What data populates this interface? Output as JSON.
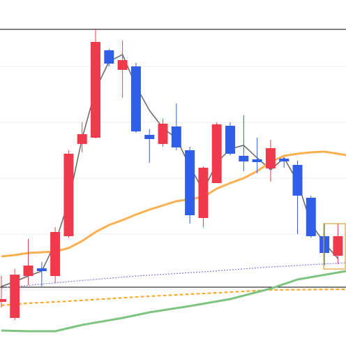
{
  "chart_data": {
    "type": "candlestick",
    "x": [
      0,
      1,
      2,
      3,
      4,
      5,
      6,
      7,
      8,
      9,
      10,
      11,
      12,
      13,
      14,
      15,
      16,
      17,
      18,
      19,
      20,
      21,
      22,
      23,
      24,
      25
    ],
    "open": [
      56,
      33,
      93,
      104,
      93,
      150,
      282,
      291,
      416,
      388,
      393,
      295,
      282,
      307,
      273,
      176,
      226,
      308,
      265,
      260,
      247,
      261,
      252,
      205,
      150,
      122
    ],
    "high": [
      93,
      103,
      146,
      113,
      163,
      273,
      313,
      446,
      418,
      430,
      398,
      303,
      318,
      340,
      278,
      250,
      313,
      313,
      323,
      291,
      288,
      263,
      258,
      208,
      168,
      168
    ],
    "low": [
      48,
      30,
      80,
      78,
      83,
      148,
      270,
      290,
      393,
      348,
      298,
      255,
      278,
      273,
      168,
      163,
      226,
      266,
      243,
      240,
      228,
      248,
      153,
      148,
      108,
      110
    ],
    "close": [
      60,
      95,
      108,
      100,
      156,
      268,
      296,
      428,
      397,
      402,
      300,
      289,
      311,
      277,
      180,
      248,
      310,
      268,
      257,
      256,
      276,
      257,
      208,
      150,
      126,
      150
    ],
    "up_color": "#ef3a4c",
    "down_color": "#2f5fe6",
    "lines": [
      {
        "color": "#666666",
        "style": "solid",
        "width": 1.5,
        "x": [
          0,
          1,
          2,
          3,
          4,
          5,
          6,
          7,
          8,
          9,
          10,
          11,
          12,
          13,
          14,
          15,
          16,
          17,
          18,
          19,
          20,
          21,
          22,
          23,
          24,
          25
        ],
        "values": [
          78,
          85,
          93,
          100,
          140,
          200,
          290,
          360,
          400,
          410,
          365,
          330,
          305,
          290,
          250,
          215,
          255,
          275,
          280,
          262,
          245,
          262,
          228,
          168,
          140,
          118
        ]
      },
      {
        "color": "#fbb04f",
        "style": "solid",
        "width": 3,
        "x": [
          0,
          1,
          2,
          3,
          4,
          5,
          6,
          7,
          8,
          9,
          10,
          11,
          12,
          13,
          14,
          15,
          16,
          17,
          18,
          19,
          20,
          21,
          22,
          23,
          24,
          25,
          25.6
        ],
        "values": [
          121,
          123,
          126,
          127,
          128,
          133,
          143,
          156,
          166,
          173,
          181,
          188,
          194,
          200,
          203,
          206,
          218,
          226,
          233,
          243,
          256,
          265,
          268,
          270,
          271,
          268,
          266
        ]
      },
      {
        "color": "#8877dd",
        "style": "dotted",
        "width": 1.2,
        "x": [
          0,
          5,
          10,
          15,
          20,
          25.6
        ],
        "values": [
          76,
          85,
          93,
          99,
          106,
          112
        ]
      },
      {
        "color": "#f9a825",
        "style": "dashed",
        "width": 2,
        "x": [
          0,
          2,
          5,
          10,
          15,
          20,
          25.6
        ],
        "values": [
          51,
          54,
          57,
          63,
          68,
          73,
          74
        ]
      },
      {
        "color": "#7cc47f",
        "style": "solid",
        "width": 3,
        "x": [
          0,
          2,
          4,
          6,
          9,
          11,
          14,
          17,
          20,
          22,
          25.6
        ],
        "values": [
          15,
          14,
          14,
          23,
          33,
          41,
          50,
          60,
          75,
          88,
          100
        ]
      }
    ],
    "hlines": [
      446,
      77
    ],
    "xlim": [
      -0.1,
      25.6
    ],
    "ylim": [
      0,
      488
    ],
    "yticks": [
      393,
      313,
      233,
      153,
      73
    ],
    "grid": true
  }
}
